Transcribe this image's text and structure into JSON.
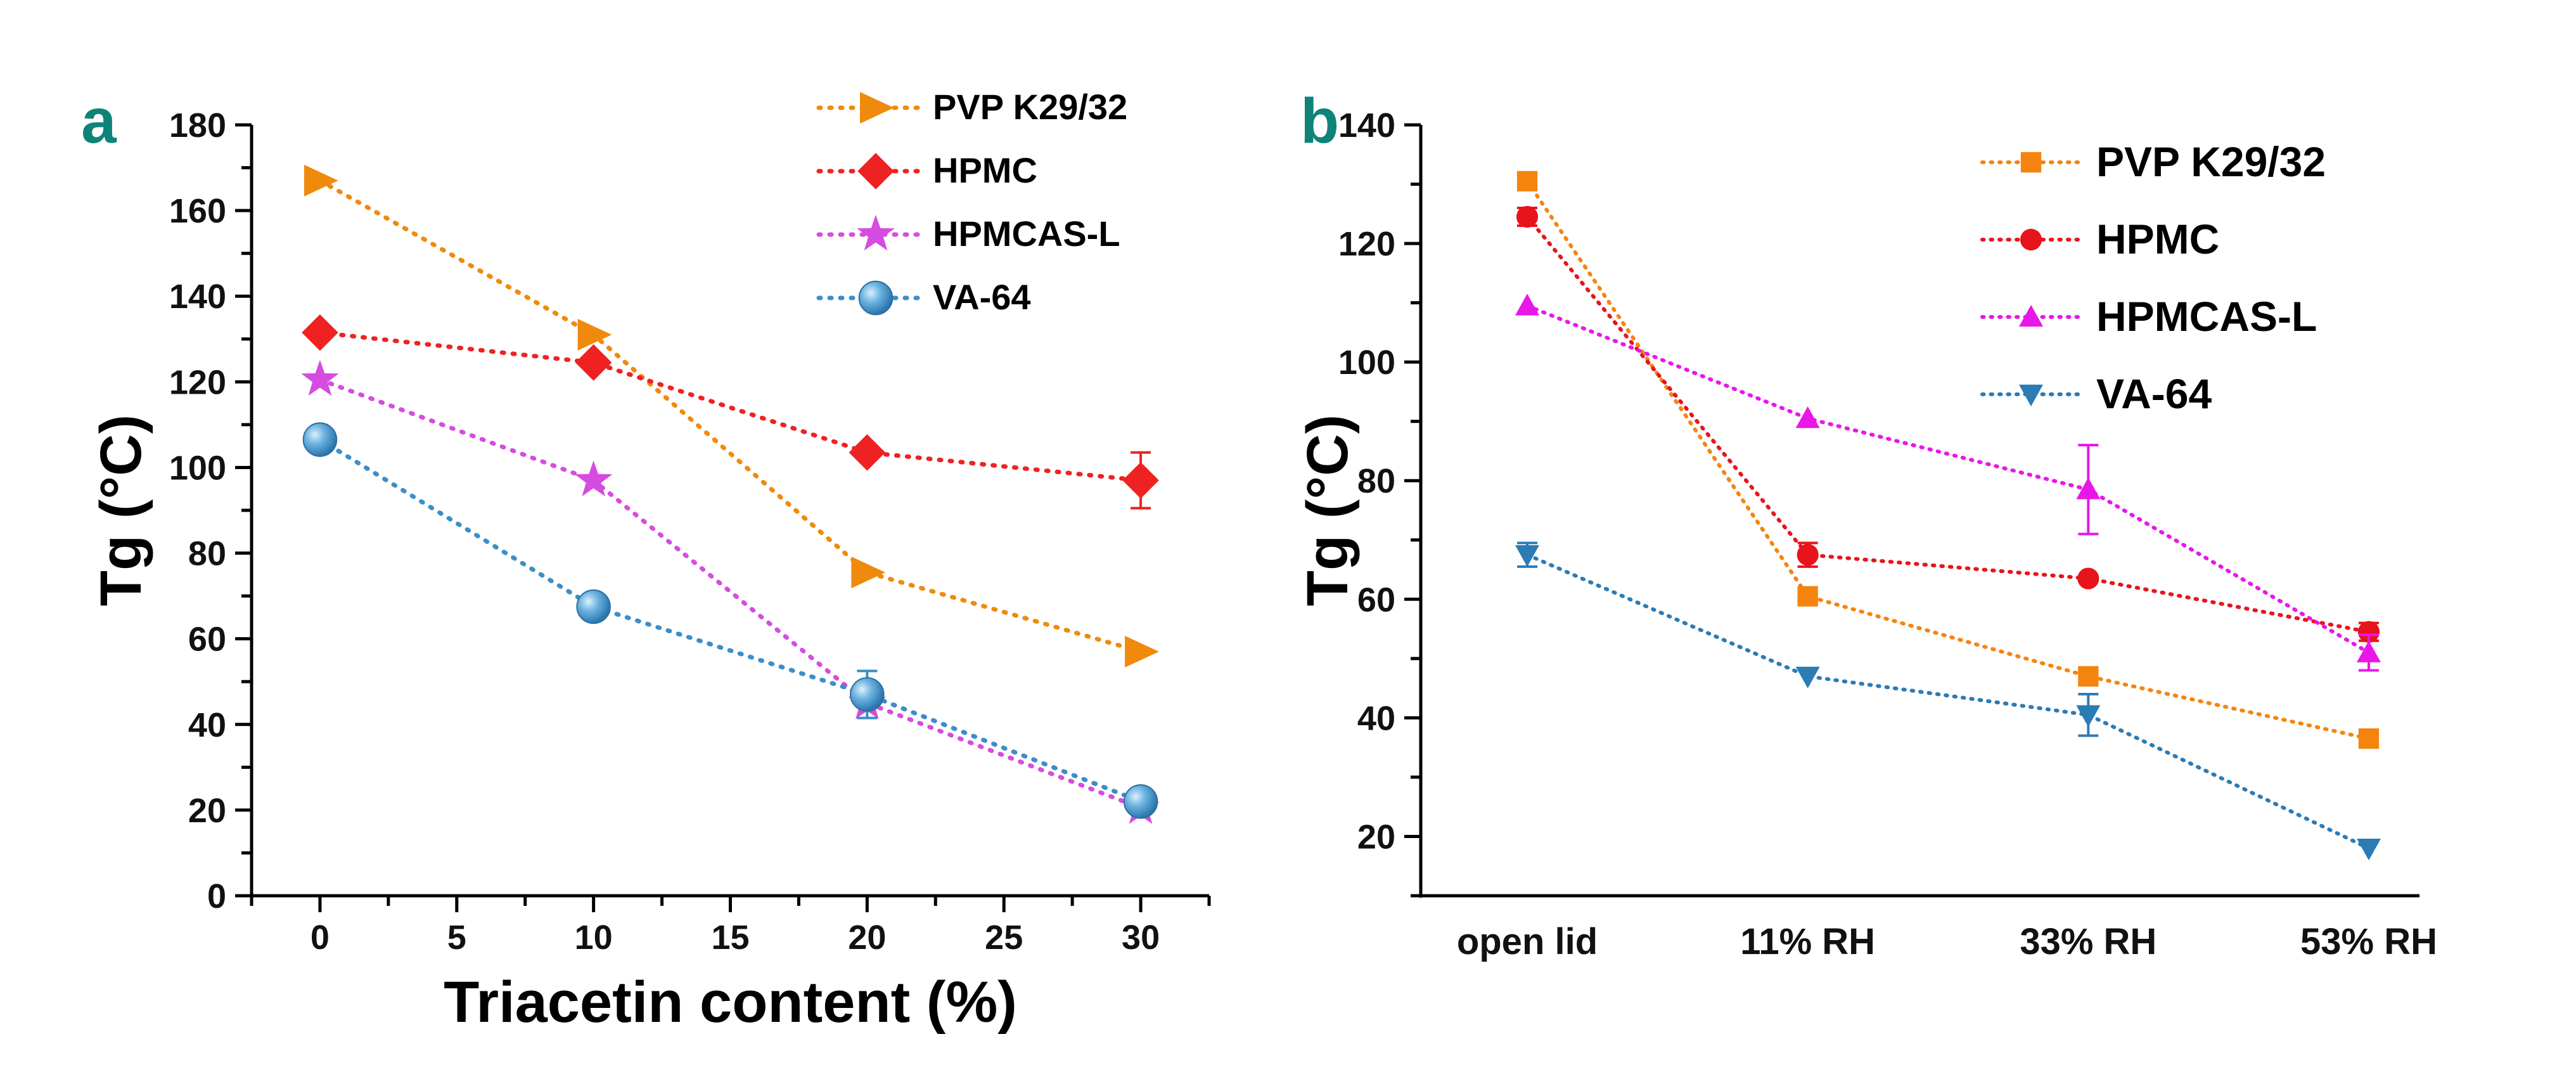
{
  "chart_data": [
    {
      "panel": "a",
      "type": "line",
      "xlabel": "Triacetin content (%)",
      "ylabel": "Tg (°C)",
      "xlim": [
        -2.5,
        32.5
      ],
      "ylim": [
        0,
        180
      ],
      "xticks": [
        0,
        5,
        10,
        15,
        20,
        25,
        30
      ],
      "yticks": [
        0,
        20,
        40,
        60,
        80,
        100,
        120,
        140,
        160,
        180
      ],
      "legend_position": "top-right",
      "series": [
        {
          "name": "PVP K29/32",
          "color": "#F08A0C",
          "marker": "triangle-right",
          "x": [
            0,
            10,
            20,
            30
          ],
          "y": [
            167,
            131,
            75.5,
            57
          ],
          "err": [
            0,
            0,
            0,
            0
          ]
        },
        {
          "name": "HPMC",
          "color": "#EE2222",
          "marker": "diamond",
          "x": [
            0,
            10,
            20,
            30
          ],
          "y": [
            131.5,
            124.5,
            103.5,
            97
          ],
          "err": [
            0,
            0,
            0,
            6.5
          ]
        },
        {
          "name": "HPMCAS-L",
          "color": "#D64CE0",
          "marker": "star",
          "x": [
            0,
            10,
            20,
            30
          ],
          "y": [
            120.5,
            97,
            45,
            20.5
          ],
          "err": [
            0,
            0,
            0,
            0
          ]
        },
        {
          "name": "VA-64",
          "color": "#3B8EC8",
          "marker": "sphere",
          "x": [
            0,
            10,
            20,
            30
          ],
          "y": [
            106.5,
            67.5,
            47,
            22
          ],
          "err": [
            0,
            0,
            5.5,
            0
          ]
        }
      ]
    },
    {
      "panel": "b",
      "type": "line",
      "xlabel": "",
      "ylabel": "Tg (°C)",
      "categories": [
        "open lid",
        "11% RH",
        "33% RH",
        "53% RH"
      ],
      "ylim": [
        10,
        140
      ],
      "yticks": [
        20,
        40,
        60,
        80,
        100,
        120,
        140
      ],
      "legend_position": "top-right",
      "series": [
        {
          "name": "PVP K29/32",
          "color": "#F5840F",
          "marker": "square",
          "values": [
            130.5,
            60.5,
            47,
            36.5
          ],
          "err": [
            0,
            0,
            0,
            0
          ]
        },
        {
          "name": "HPMC",
          "color": "#E8141B",
          "marker": "circle",
          "values": [
            124.5,
            67.5,
            63.5,
            54.5
          ],
          "err": [
            1.5,
            2,
            0,
            1.5
          ]
        },
        {
          "name": "HPMCAS-L",
          "color": "#E916E9",
          "marker": "triangle-up",
          "values": [
            109.5,
            90.5,
            78.5,
            51
          ],
          "err": [
            0,
            0,
            7.5,
            3
          ]
        },
        {
          "name": "VA-64",
          "color": "#2B7BB5",
          "marker": "triangle-down",
          "values": [
            67.5,
            47,
            40.5,
            18
          ],
          "err": [
            2,
            0,
            3.5,
            0
          ]
        }
      ]
    }
  ],
  "panel_labels": {
    "a": "a",
    "b": "b"
  },
  "colors": {
    "panel_letter": "#0E8479",
    "axis": "#000000"
  }
}
